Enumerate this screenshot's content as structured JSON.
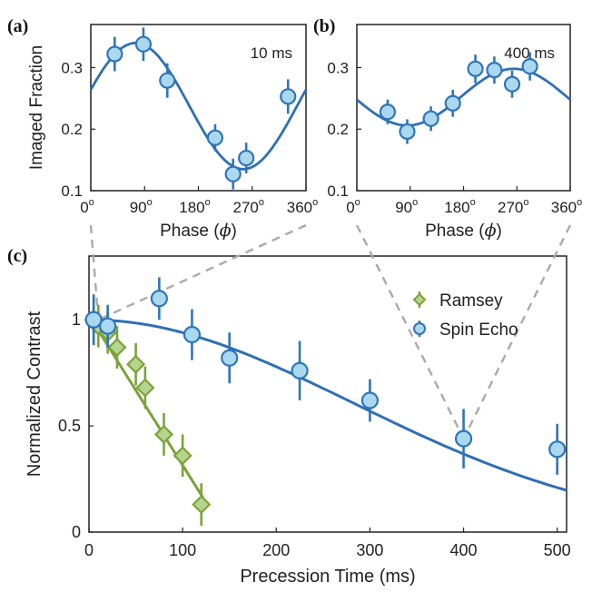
{
  "panels": {
    "a": {
      "label": "(a)",
      "annotation": "10 ms"
    },
    "b": {
      "label": "(b)",
      "annotation": "400 ms"
    },
    "c": {
      "label": "(c)"
    }
  },
  "chart_data": [
    {
      "id": "a",
      "type": "scatter",
      "annotation": "10 ms",
      "xlabel": "Phase (ϕ)",
      "ylabel": "Imaged Fraction",
      "xlim": [
        0,
        360
      ],
      "ylim": [
        0.1,
        0.37
      ],
      "xticks": [
        0,
        90,
        180,
        270,
        360
      ],
      "xtick_labels": [
        "0",
        "90",
        "180",
        "270",
        "360"
      ],
      "xtick_suffix": "o",
      "yticks": [
        0.1,
        0.2,
        0.3
      ],
      "ytick_labels": [
        "0.1",
        "0.2",
        "0.3"
      ],
      "points": [
        {
          "x": 40,
          "y": 0.322,
          "err": 0.028
        },
        {
          "x": 88,
          "y": 0.338,
          "err": 0.027
        },
        {
          "x": 128,
          "y": 0.279,
          "err": 0.028
        },
        {
          "x": 208,
          "y": 0.186,
          "err": 0.022
        },
        {
          "x": 238,
          "y": 0.127,
          "err": 0.025
        },
        {
          "x": 260,
          "y": 0.153,
          "err": 0.025
        },
        {
          "x": 330,
          "y": 0.253,
          "err": 0.028
        }
      ],
      "fit": {
        "offset": 0.2375,
        "amplitude": 0.1025,
        "peak_phase": 75
      },
      "colors": {
        "marker_fill": "#a9d8ef",
        "marker_edge": "#3075b8",
        "fit": "#2e6fb5"
      }
    },
    {
      "id": "b",
      "type": "scatter",
      "annotation": "400 ms",
      "xlabel": "Phase (ϕ)",
      "xlim": [
        0,
        360
      ],
      "ylim": [
        0.1,
        0.37
      ],
      "xticks": [
        0,
        90,
        180,
        270,
        360
      ],
      "xtick_labels": [
        "0",
        "90",
        "180",
        "270",
        "360"
      ],
      "xtick_suffix": "o",
      "yticks": [
        0.1,
        0.2,
        0.3
      ],
      "ytick_labels": [
        "0.1",
        "0.2",
        "0.3"
      ],
      "points": [
        {
          "x": 52,
          "y": 0.228,
          "err": 0.02
        },
        {
          "x": 85,
          "y": 0.196,
          "err": 0.02
        },
        {
          "x": 125,
          "y": 0.217,
          "err": 0.02
        },
        {
          "x": 162,
          "y": 0.242,
          "err": 0.022
        },
        {
          "x": 200,
          "y": 0.298,
          "err": 0.023
        },
        {
          "x": 232,
          "y": 0.296,
          "err": 0.022
        },
        {
          "x": 262,
          "y": 0.273,
          "err": 0.022
        },
        {
          "x": 292,
          "y": 0.302,
          "err": 0.023
        }
      ],
      "fit": {
        "offset": 0.252,
        "amplitude": 0.046,
        "peak_phase": 265
      },
      "colors": {
        "marker_fill": "#a9d8ef",
        "marker_edge": "#3075b8",
        "fit": "#2e6fb5"
      }
    },
    {
      "id": "c",
      "type": "scatter",
      "xlabel": "Precession Time (ms)",
      "ylabel": "Normalized Contrast",
      "xlim": [
        0,
        510
      ],
      "ylim": [
        0,
        1.3
      ],
      "xticks": [
        0,
        100,
        200,
        300,
        400,
        500
      ],
      "xtick_labels": [
        "0",
        "100",
        "200",
        "300",
        "400",
        "500"
      ],
      "yticks": [
        0,
        0.5,
        1
      ],
      "ytick_labels": [
        "0",
        "0.5",
        "1"
      ],
      "legend_position": "top-right",
      "series": [
        {
          "name": "Ramsey",
          "marker": "diamond",
          "colors": {
            "fill": "#b5d58f",
            "edge": "#7aa33a",
            "line": "#7aa33a"
          },
          "points": [
            {
              "x": 5,
              "y": 1.0,
              "err": 0.1
            },
            {
              "x": 10,
              "y": 0.97,
              "err": 0.1
            },
            {
              "x": 20,
              "y": 0.94,
              "err": 0.1
            },
            {
              "x": 30,
              "y": 0.87,
              "err": 0.1
            },
            {
              "x": 50,
              "y": 0.79,
              "err": 0.1
            },
            {
              "x": 60,
              "y": 0.68,
              "err": 0.1
            },
            {
              "x": 80,
              "y": 0.46,
              "err": 0.1
            },
            {
              "x": 100,
              "y": 0.36,
              "err": 0.1
            },
            {
              "x": 120,
              "y": 0.13,
              "err": 0.1
            }
          ],
          "fit": {
            "type": "linear",
            "x0": 0,
            "x1": 122,
            "y0": 1.02,
            "y1": 0.16
          }
        },
        {
          "name": "Spin Echo",
          "marker": "circle",
          "colors": {
            "fill": "#a9d8ef",
            "edge": "#3075b8",
            "line": "#2e6fb5"
          },
          "points": [
            {
              "x": 5,
              "y": 1.0,
              "err": 0.12
            },
            {
              "x": 20,
              "y": 0.97,
              "err": 0.1
            },
            {
              "x": 75,
              "y": 1.1,
              "err": 0.1
            },
            {
              "x": 110,
              "y": 0.93,
              "err": 0.12
            },
            {
              "x": 150,
              "y": 0.82,
              "err": 0.12
            },
            {
              "x": 225,
              "y": 0.76,
              "err": 0.14
            },
            {
              "x": 300,
              "y": 0.62,
              "err": 0.1
            },
            {
              "x": 400,
              "y": 0.44,
              "err": 0.14
            },
            {
              "x": 500,
              "y": 0.39,
              "err": 0.12
            }
          ],
          "fit": {
            "type": "gaussian",
            "x0": 0,
            "x1": 510,
            "amplitude": 1.0,
            "width": 400
          }
        }
      ]
    }
  ]
}
